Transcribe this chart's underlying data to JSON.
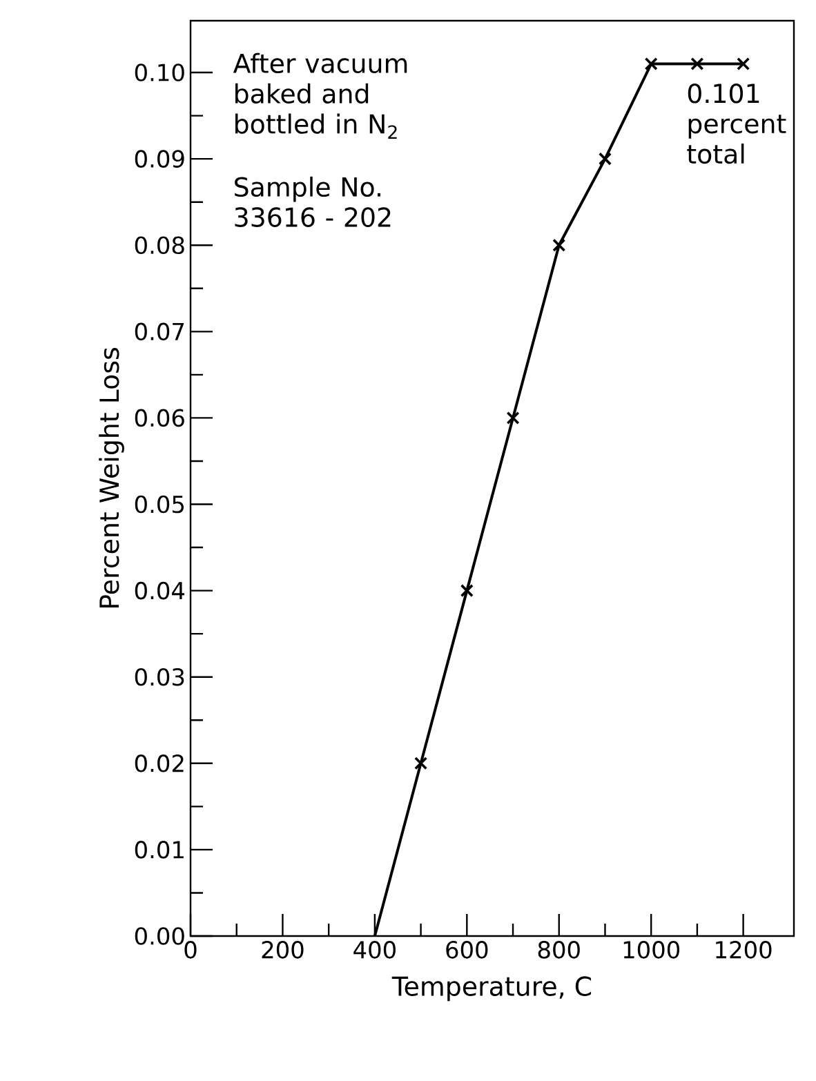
{
  "chart_data": {
    "type": "scatter",
    "xlabel": "Temperature, C",
    "ylabel": "Percent Weight Loss",
    "annotations": [
      "After vacuum baked and bottled in N$_{2}$",
      "Sample No. 33616 - 202",
      {
        "text": "0.101 percent total",
        "x": 1100,
        "y": 0.101
      }
    ],
    "series": [
      {
        "color": "#000000",
        "marker": "cross",
        "x": [
          500,
          600,
          700,
          800,
          900,
          1000,
          1100,
          1200
        ],
        "values": [
          0.02,
          0.04,
          0.06,
          0.08,
          0.09,
          0.101,
          0.101,
          0.101
        ]
      },
      {
        "type": "line",
        "color": "#000000",
        "marker": "none",
        "line_style": "solid",
        "x": [
          400,
          500,
          600,
          700,
          800,
          900,
          1000,
          1100,
          1200
        ],
        "values": [
          0,
          0.02,
          0.04,
          0.06,
          0.08,
          0.09,
          0.101,
          0.101,
          0.101
        ]
      }
    ],
    "xlim": [
      0,
      1310
    ],
    "ylim": [
      0,
      0.106
    ],
    "xticks": [
      0,
      200,
      400,
      600,
      800,
      1000,
      1200
    ],
    "yticks": [
      {
        "value": 0,
        "label": "0.00"
      },
      {
        "value": 0.01,
        "label": "0.01"
      },
      {
        "value": 0.02,
        "label": "0.02"
      },
      {
        "value": 0.03,
        "label": "0.03"
      },
      {
        "value": 0.04,
        "label": "0.04"
      },
      {
        "value": 0.05,
        "label": "0.05"
      },
      {
        "value": 0.06,
        "label": "0.06"
      },
      {
        "value": 0.07,
        "label": "0.07"
      },
      {
        "value": 0.08,
        "label": "0.08"
      },
      {
        "value": 0.09,
        "label": "0.09"
      },
      {
        "value": 0.1,
        "label": "0.10"
      }
    ],
    "grid": false
  }
}
